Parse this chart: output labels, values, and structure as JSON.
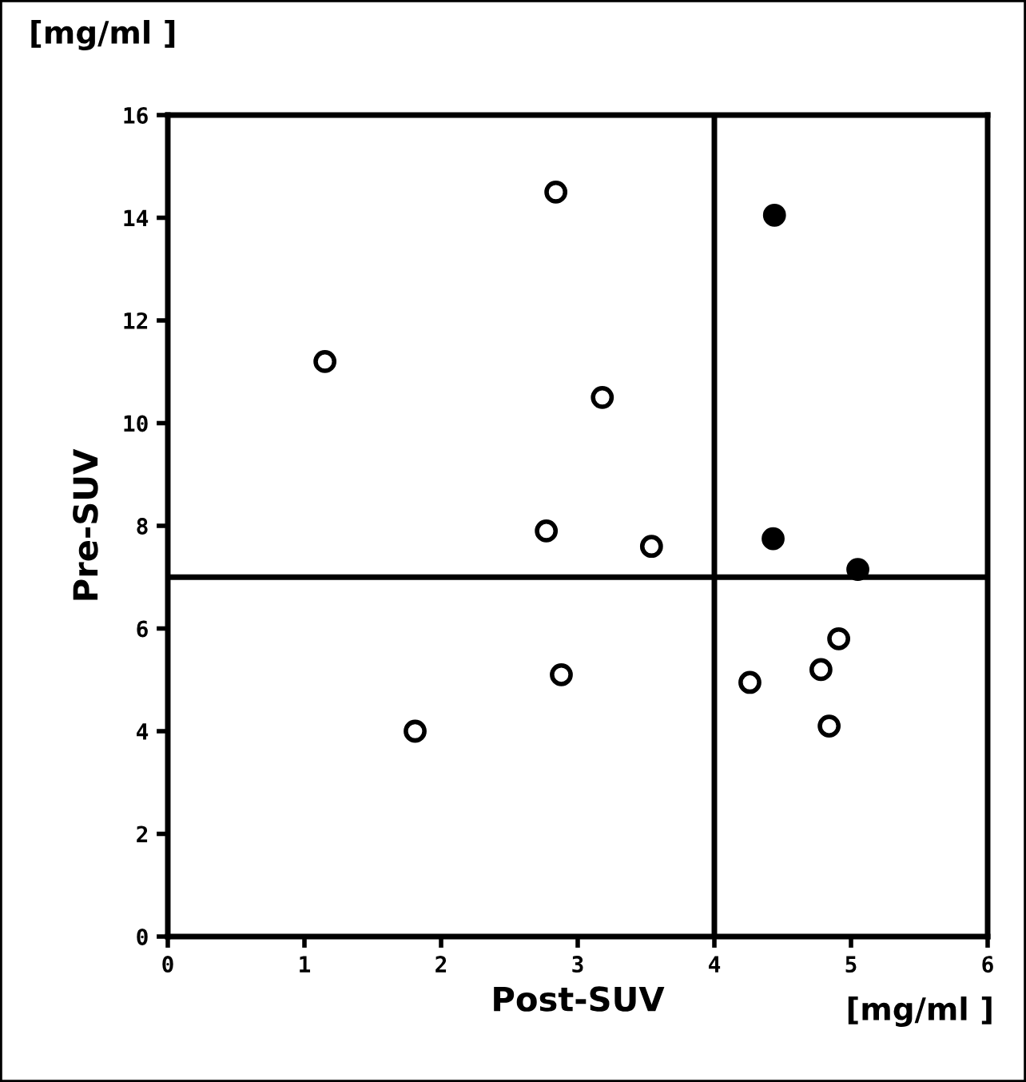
{
  "chart_data": {
    "type": "scatter",
    "xlabel": "Post-SUV",
    "ylabel": "Pre-SUV",
    "annotations": [
      "[mg/ml ]",
      "[mg/ml ]"
    ],
    "series": [
      {
        "color": "#ffffff",
        "x": [
          1.15,
          2.84,
          2.77,
          3.18,
          3.54,
          1.81,
          2.88,
          4.26,
          4.78,
          4.91,
          4.84
        ],
        "values": [
          11.2,
          14.5,
          7.9,
          10.5,
          7.6,
          4.0,
          5.1,
          4.95,
          5.2,
          5.8,
          4.1
        ]
      },
      {
        "color": "#000000",
        "x": [
          4.44,
          4.43,
          5.05
        ],
        "values": [
          14.05,
          7.75,
          7.15
        ]
      }
    ],
    "xlim": [
      0,
      6
    ],
    "ylim": [
      0,
      16
    ],
    "xticks": [
      0,
      1,
      2,
      3,
      4,
      5,
      6
    ],
    "yticks": [
      0,
      2,
      4,
      6,
      8,
      10,
      12,
      14,
      16
    ],
    "ref_lines": [
      {
        "axis": "x",
        "value": 4,
        "color": "#000000"
      },
      {
        "axis": "y",
        "value": 7,
        "color": "#000000"
      }
    ],
    "marker": "circle",
    "grid": false,
    "legend": false
  }
}
